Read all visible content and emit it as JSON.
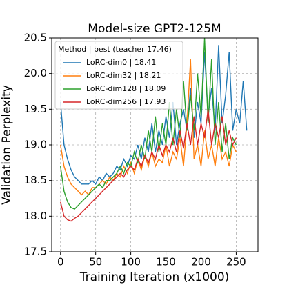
{
  "chart_data": {
    "type": "line",
    "title": "Model-size GPT2-125M",
    "x_label": "Training Iteration (x1000)",
    "y_label": "Validation Perplexity",
    "x": [
      0,
      5,
      10,
      15,
      20,
      25,
      30,
      35,
      40,
      45,
      50,
      55,
      60,
      65,
      70,
      75,
      80,
      85,
      90,
      95,
      100,
      105,
      110,
      115,
      120,
      125,
      130,
      135,
      140,
      145,
      150,
      155,
      160,
      165,
      170,
      175,
      180,
      185,
      190,
      195,
      200,
      205,
      210,
      215,
      220,
      225,
      230,
      235,
      240,
      245,
      250,
      255,
      260,
      265
    ],
    "series": [
      {
        "name": "LoRC-dim0 | 18.41",
        "color": "#1f77b4",
        "values": [
          19.6,
          19.0,
          18.8,
          18.65,
          18.55,
          18.5,
          18.45,
          18.45,
          18.45,
          18.5,
          18.45,
          18.55,
          18.5,
          18.6,
          18.55,
          18.6,
          18.7,
          18.65,
          18.8,
          18.7,
          18.85,
          18.8,
          19.0,
          18.8,
          19.1,
          18.9,
          19.3,
          18.9,
          19.2,
          19.0,
          19.4,
          19.1,
          19.6,
          19.0,
          19.3,
          19.5,
          19.2,
          19.8,
          19.1,
          19.6,
          19.3,
          20.3,
          19.4,
          19.8,
          19.2,
          20.4,
          19.3,
          19.7,
          20.3,
          19.2,
          19.5,
          19.3,
          19.9,
          19.2
        ]
      },
      {
        "name": "LoRC-dim32 | 18.21",
        "color": "#ff7f0e",
        "values": [
          19.0,
          18.7,
          18.55,
          18.45,
          18.4,
          18.35,
          18.3,
          18.35,
          18.3,
          18.4,
          18.4,
          18.45,
          18.5,
          18.45,
          18.55,
          18.5,
          18.6,
          18.55,
          18.7,
          18.6,
          18.75,
          18.6,
          18.8,
          18.65,
          18.85,
          18.7,
          18.9,
          18.7,
          18.8,
          18.75,
          19.0,
          18.7,
          18.9,
          18.8,
          19.1,
          18.7,
          19.3,
          20.2,
          18.8,
          19.0,
          18.7,
          19.2,
          18.8,
          19.0,
          18.7,
          19.1,
          18.8,
          18.9,
          18.7,
          19.0,
          18.9,
          null,
          null,
          null
        ]
      },
      {
        "name": "LoRC-dim128 | 18.09",
        "color": "#2ca02c",
        "values": [
          18.7,
          18.35,
          18.2,
          18.12,
          18.1,
          18.15,
          18.2,
          18.25,
          18.3,
          18.35,
          18.4,
          18.45,
          18.4,
          18.5,
          18.5,
          18.55,
          18.6,
          18.7,
          18.6,
          18.75,
          18.7,
          18.9,
          18.75,
          19.0,
          18.8,
          19.2,
          18.9,
          19.4,
          18.9,
          19.3,
          19.0,
          19.6,
          19.0,
          19.5,
          19.1,
          19.9,
          19.2,
          19.7,
          19.2,
          20.0,
          19.4,
          20.5,
          19.3,
          20.2,
          19.0,
          19.6,
          18.9,
          19.3,
          18.8,
          19.1,
          19.0,
          null,
          null,
          null
        ]
      },
      {
        "name": "LoRC-dim256 | 17.93",
        "color": "#d62728",
        "values": [
          18.2,
          18.0,
          17.95,
          17.93,
          17.97,
          18.0,
          18.05,
          18.1,
          18.15,
          18.2,
          18.25,
          18.3,
          18.35,
          18.4,
          18.45,
          18.5,
          18.55,
          18.6,
          18.55,
          18.65,
          18.7,
          18.65,
          18.8,
          18.7,
          18.85,
          18.75,
          18.9,
          18.8,
          19.0,
          18.85,
          19.0,
          18.9,
          19.1,
          18.9,
          19.2,
          18.95,
          19.3,
          19.0,
          19.4,
          19.0,
          19.3,
          19.1,
          19.5,
          19.0,
          19.3,
          19.1,
          19.4,
          19.0,
          19.2,
          19.0,
          19.1,
          null,
          null,
          null
        ]
      }
    ],
    "legend_title": "Method | best (teacher 17.46)",
    "legend": "upper left",
    "xlim": [
      -12.5,
      281
    ],
    "xticks": [
      0,
      50,
      100,
      150,
      200,
      250
    ],
    "ylim": [
      17.5,
      20.5
    ],
    "yticks": [
      17.5,
      {
        "value": 18,
        "label": "18.0"
      },
      18.5,
      {
        "value": 19,
        "label": "19.0"
      },
      19.5,
      {
        "value": 20,
        "label": "20.0"
      },
      20.5
    ],
    "grid": true
  }
}
